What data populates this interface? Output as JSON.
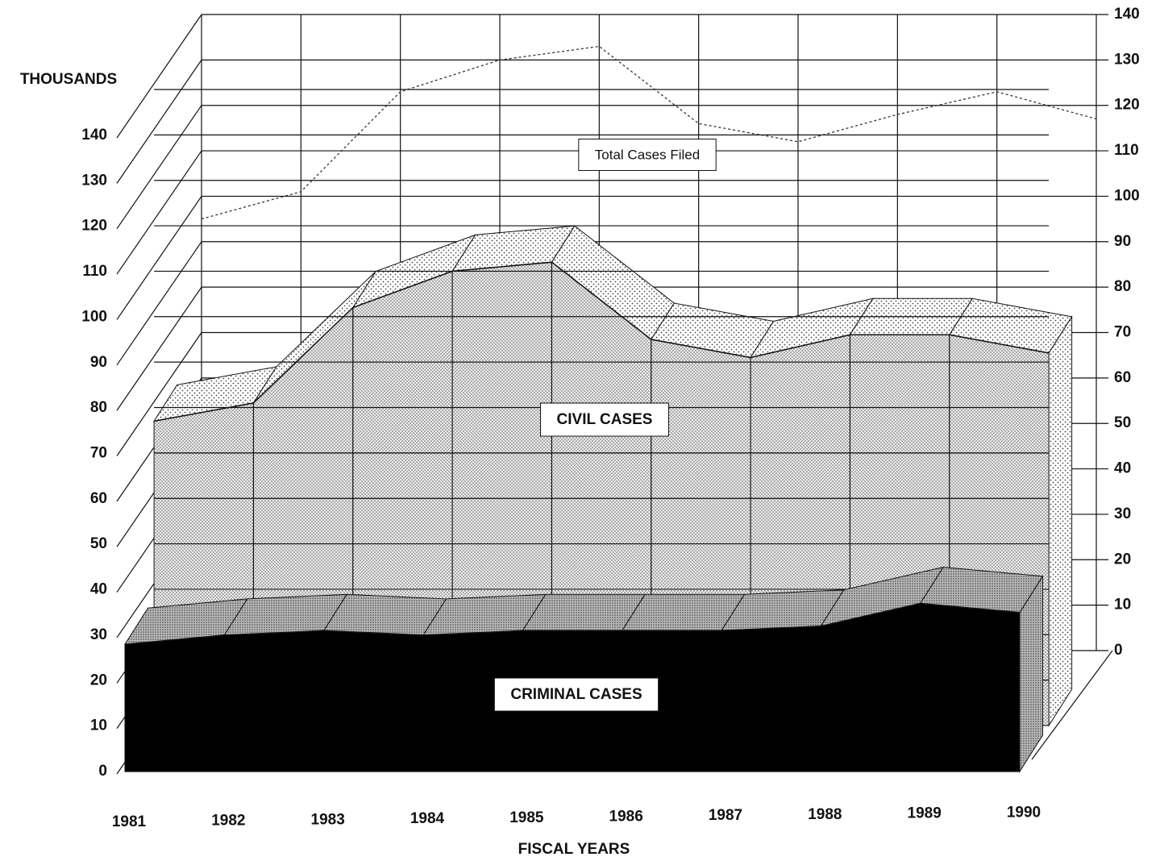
{
  "chart_data": {
    "type": "area3d",
    "y_label": "THOUSANDS",
    "x_label": "FISCAL YEARS",
    "categories": [
      "1981",
      "1982",
      "1983",
      "1984",
      "1985",
      "1986",
      "1987",
      "1988",
      "1989",
      "1990"
    ],
    "series": [
      {
        "name": "CRIMINAL CASES",
        "color": "#000000",
        "values": [
          28,
          30,
          31,
          30,
          31,
          31,
          31,
          32,
          37,
          35
        ]
      },
      {
        "name": "CIVIL CASES",
        "color": "#e2e2e2",
        "values": [
          67,
          71,
          92,
          100,
          102,
          85,
          81,
          86,
          86,
          82
        ]
      },
      {
        "name": "Total Cases Filed",
        "color": "#333333",
        "values": [
          95,
          101,
          123,
          130,
          133,
          116,
          112,
          118,
          123,
          117
        ]
      }
    ],
    "ylim": [
      0,
      140
    ],
    "yticks": [
      0,
      10,
      20,
      30,
      40,
      50,
      60,
      70,
      80,
      90,
      100,
      110,
      120,
      130,
      140
    ],
    "grid": true
  }
}
